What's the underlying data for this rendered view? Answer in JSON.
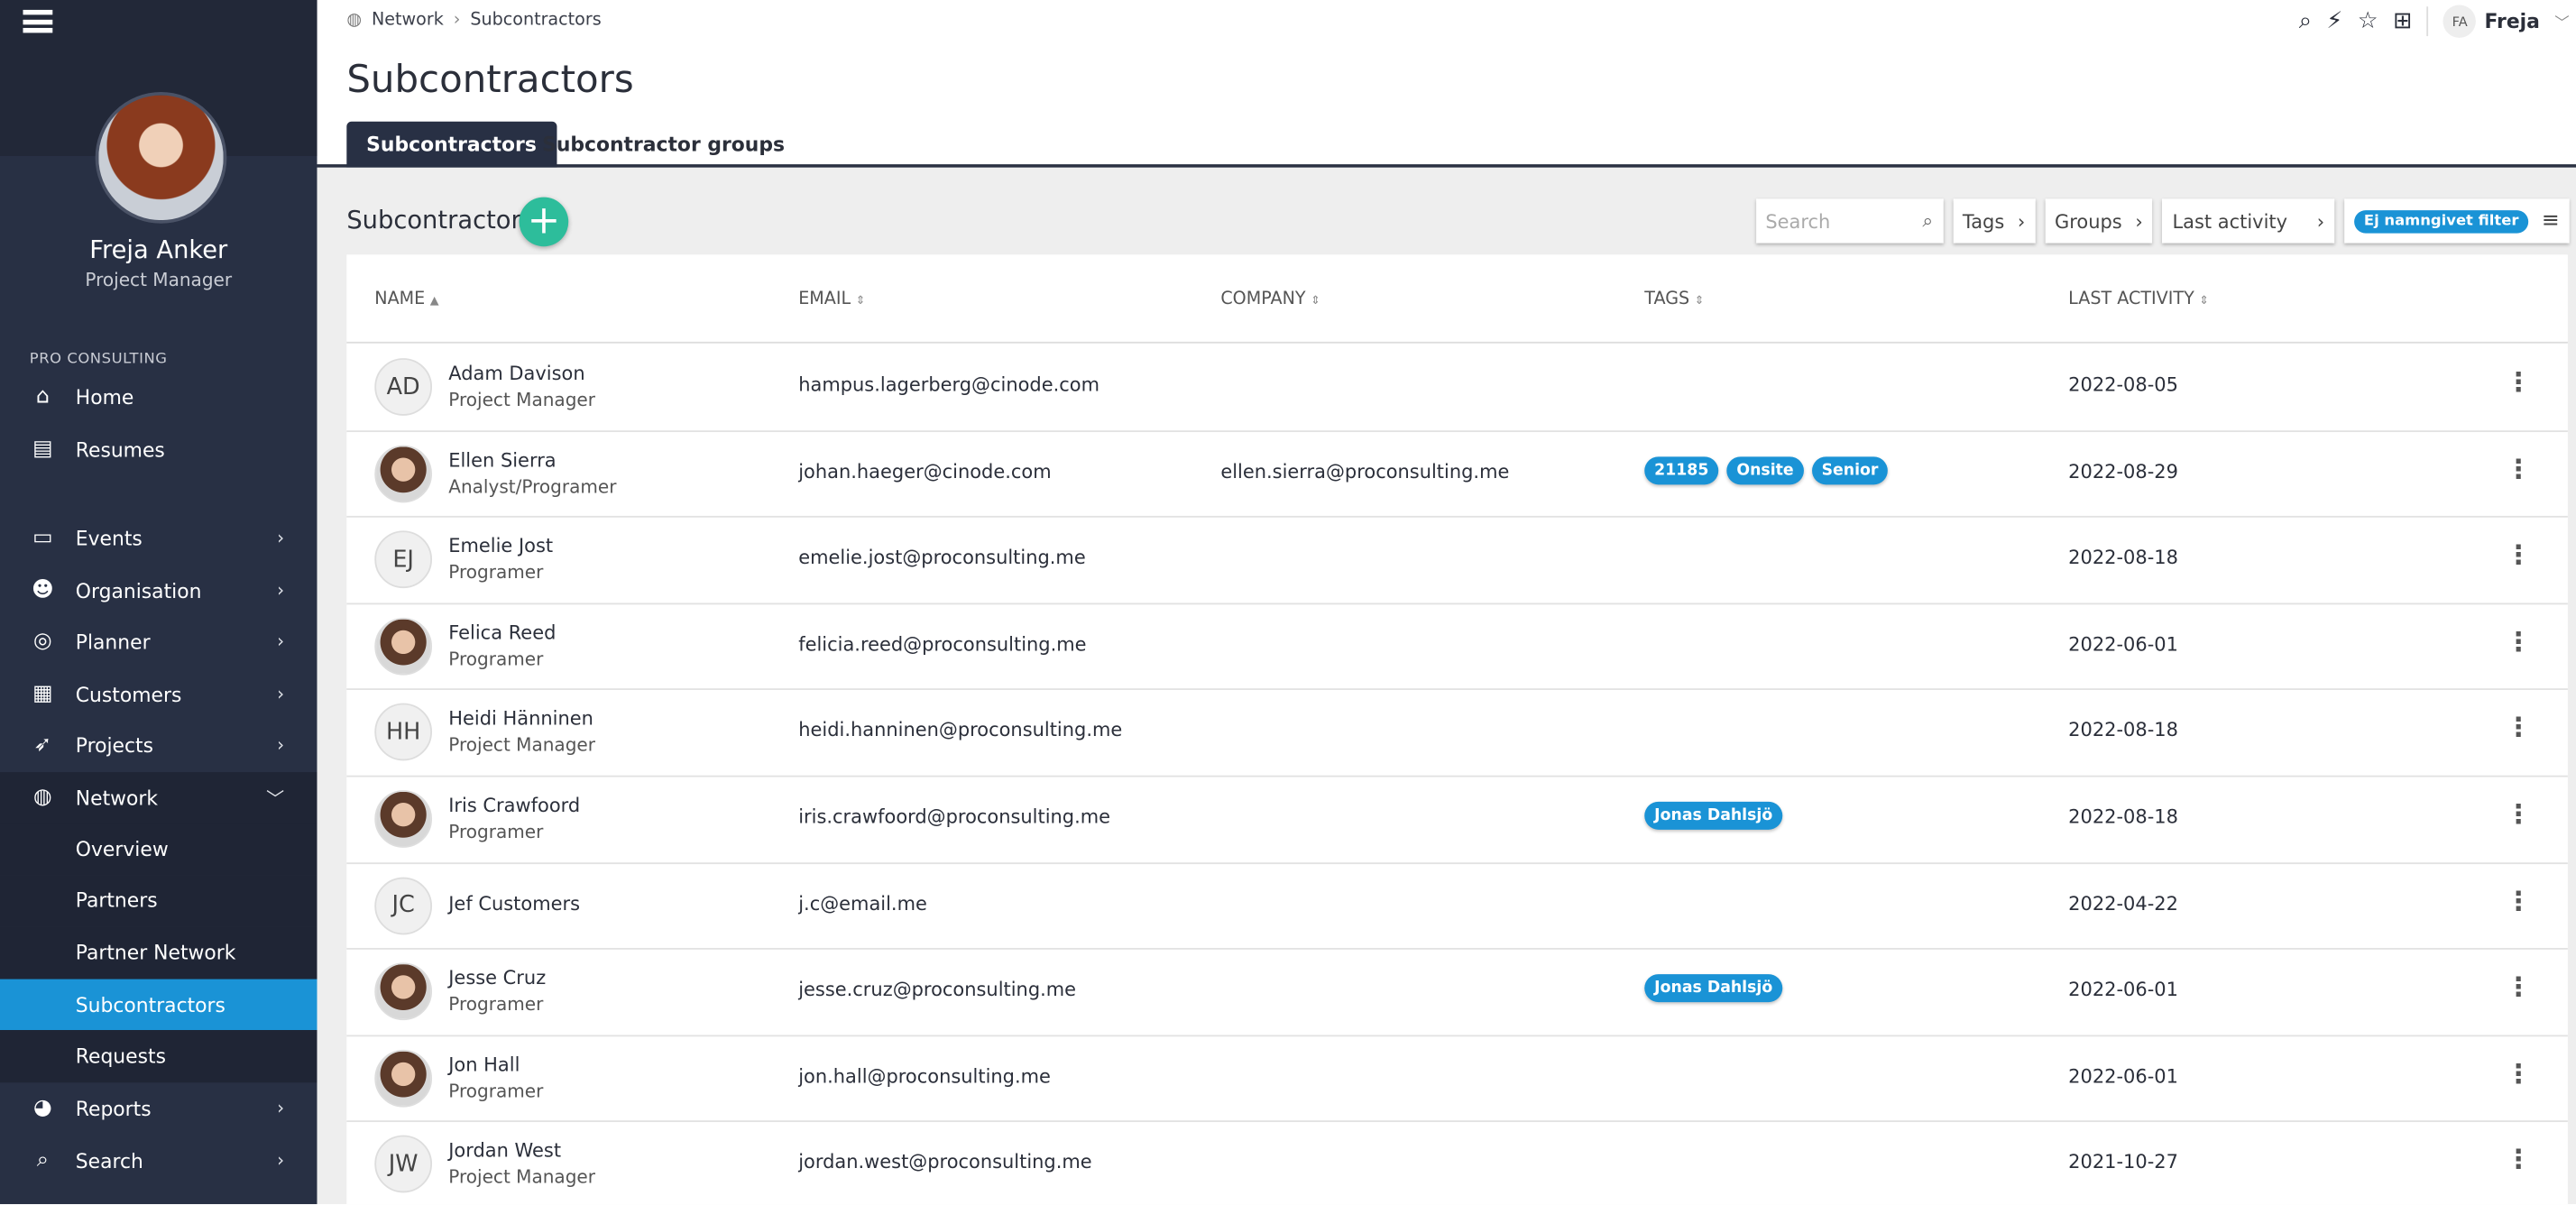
{
  "sidebar": {
    "user": {
      "name": "Freja Anker",
      "role": "Project Manager"
    },
    "org": "PRO CONSULTING",
    "items": [
      {
        "label": "Home",
        "icon": "home-icon"
      },
      {
        "label": "Resumes",
        "icon": "resume-icon"
      },
      {
        "label": "Events",
        "icon": "calendar-icon"
      },
      {
        "label": "Organisation",
        "icon": "people-icon"
      },
      {
        "label": "Planner",
        "icon": "radar-icon"
      },
      {
        "label": "Customers",
        "icon": "buildings-icon"
      },
      {
        "label": "Projects",
        "icon": "rocket-icon"
      },
      {
        "label": "Network",
        "icon": "globe-icon"
      },
      {
        "label": "Reports",
        "icon": "pie-chart-icon"
      },
      {
        "label": "Search",
        "icon": "search-icon"
      }
    ],
    "network_sub": [
      "Overview",
      "Partners",
      "Partner Network",
      "Subcontractors",
      "Requests"
    ],
    "active": "Subcontractors"
  },
  "breadcrumb": [
    "Network",
    "Subcontractors"
  ],
  "user_menu": {
    "initials": "FA",
    "name": "Freja"
  },
  "page_title": "Subcontractors",
  "tabs": [
    "Subcontractors",
    "Subcontractor groups"
  ],
  "section": {
    "title": "Subcontractors"
  },
  "filters": {
    "search_placeholder": "Search",
    "tags": "Tags",
    "groups": "Groups",
    "last_activity": "Last activity",
    "saved_filter": "Ej namngivet filter"
  },
  "colors": {
    "accent": "#1a93d6",
    "add": "#2dbd9b",
    "sidebar": "#283044"
  },
  "table": {
    "headers": [
      "NAME",
      "EMAIL",
      "COMPANY",
      "TAGS",
      "LAST ACTIVITY"
    ],
    "rows": [
      {
        "initials": "AD",
        "name": "Adam Davison",
        "role": "Project Manager",
        "email": "hampus.lagerberg@cinode.com",
        "company": "",
        "tags": [],
        "last": "2022-08-05"
      },
      {
        "initials": "",
        "photo": true,
        "name": "Ellen Sierra",
        "role": "Analyst/Programer",
        "email": "johan.haeger@cinode.com",
        "company": "ellen.sierra@proconsulting.me",
        "tags": [
          "21185",
          "Onsite",
          "Senior"
        ],
        "last": "2022-08-29"
      },
      {
        "initials": "EJ",
        "name": "Emelie Jost",
        "role": "Programer",
        "email": "emelie.jost@proconsulting.me",
        "company": "",
        "tags": [],
        "last": "2022-08-18"
      },
      {
        "initials": "",
        "photo": true,
        "name": "Felica Reed",
        "role": "Programer",
        "email": "felicia.reed@proconsulting.me",
        "company": "",
        "tags": [],
        "last": "2022-06-01"
      },
      {
        "initials": "HH",
        "name": "Heidi Hänninen",
        "role": "Project Manager",
        "email": "heidi.hanninen@proconsulting.me",
        "company": "",
        "tags": [],
        "last": "2022-08-18"
      },
      {
        "initials": "",
        "photo": true,
        "name": "Iris Crawfoord",
        "role": "Programer",
        "email": "iris.crawfoord@proconsulting.me",
        "company": "",
        "tags": [
          "Jonas Dahlsjö"
        ],
        "last": "2022-08-18"
      },
      {
        "initials": "JC",
        "name": "Jef Customers",
        "role": "",
        "email": "j.c@email.me",
        "company": "",
        "tags": [],
        "last": "2022-04-22"
      },
      {
        "initials": "",
        "photo": true,
        "name": "Jesse Cruz",
        "role": "Programer",
        "email": "jesse.cruz@proconsulting.me",
        "company": "",
        "tags": [
          "Jonas Dahlsjö"
        ],
        "last": "2022-06-01"
      },
      {
        "initials": "",
        "photo": true,
        "name": "Jon Hall",
        "role": "Programer",
        "email": "jon.hall@proconsulting.me",
        "company": "",
        "tags": [],
        "last": "2022-06-01"
      },
      {
        "initials": "JW",
        "name": "Jordan West",
        "role": "Project Manager",
        "email": "jordan.west@proconsulting.me",
        "company": "",
        "tags": [],
        "last": "2021-10-27"
      }
    ]
  }
}
